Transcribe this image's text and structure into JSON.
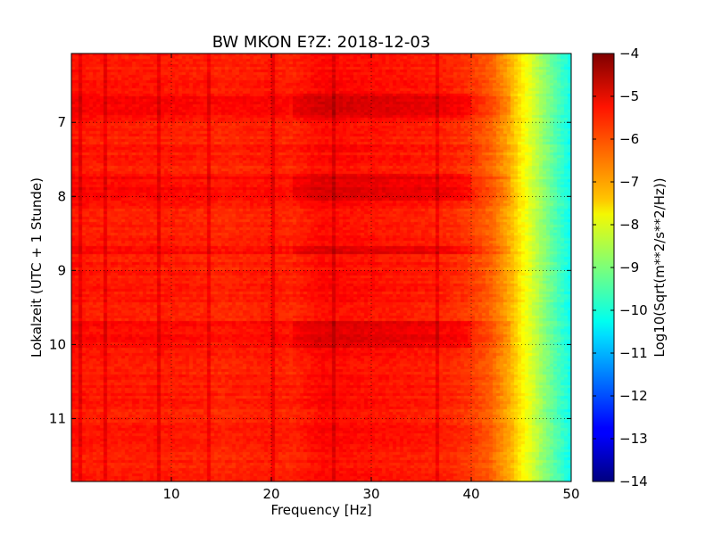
{
  "chart_data": {
    "type": "heatmap",
    "title": "BW MKON E?Z: 2018-12-03",
    "xlabel": "Frequency [Hz]",
    "ylabel": "Lokalzeit (UTC + 1 Stunde)",
    "xlim": [
      0,
      50
    ],
    "ylim": [
      6.07,
      11.85
    ],
    "y_inverted": true,
    "x_ticks": [
      10,
      20,
      30,
      40,
      50
    ],
    "x_tick_labels": [
      "10",
      "20",
      "30",
      "40",
      "50"
    ],
    "y_ticks": [
      7,
      8,
      9,
      10,
      11
    ],
    "y_tick_labels": [
      "7",
      "8",
      "9",
      "10",
      "11"
    ],
    "grid": true,
    "colormap": "jet",
    "colorbar": {
      "label": "Log10(Sqrt(m**2/s**2/Hz))",
      "range": [
        -14,
        -4
      ],
      "ticks": [
        -4,
        -5,
        -6,
        -7,
        -8,
        -9,
        -10,
        -11,
        -12,
        -13,
        -14
      ],
      "tick_labels": [
        "−4",
        "−5",
        "−6",
        "−7",
        "−8",
        "−9",
        "−10",
        "−11",
        "−12",
        "−13",
        "−14"
      ]
    },
    "frequency_profile": {
      "x": [
        0,
        2,
        5,
        10,
        15,
        20,
        22,
        25,
        30,
        35,
        38,
        40,
        42,
        44,
        45,
        46,
        47,
        48,
        49,
        50
      ],
      "values": [
        -5.4,
        -5.5,
        -5.5,
        -5.5,
        -5.6,
        -5.5,
        -5.6,
        -5.3,
        -5.4,
        -5.5,
        -5.6,
        -5.8,
        -6.2,
        -7.0,
        -7.6,
        -8.1,
        -8.7,
        -9.2,
        -9.7,
        -10.1
      ]
    },
    "vertical_lines_hz": [
      1.0,
      2.9,
      3.5,
      8.7,
      13.8,
      20.1,
      20.3,
      24.6,
      26.2,
      36.5
    ],
    "noisy_periods_h": [
      {
        "start": 6.6,
        "end": 6.95,
        "level": -5.1
      },
      {
        "start": 7.7,
        "end": 8.05,
        "level": -5.1
      },
      {
        "start": 8.68,
        "end": 8.78,
        "level": -4.7
      },
      {
        "start": 9.7,
        "end": 10.05,
        "level": -5.05
      }
    ]
  }
}
